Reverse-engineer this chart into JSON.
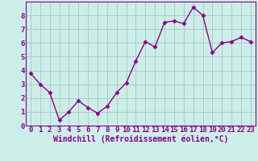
{
  "x": [
    0,
    1,
    2,
    3,
    4,
    5,
    6,
    7,
    8,
    9,
    10,
    11,
    12,
    13,
    14,
    15,
    16,
    17,
    18,
    19,
    20,
    21,
    22,
    23
  ],
  "y": [
    3.8,
    3.0,
    2.4,
    0.4,
    1.0,
    1.8,
    1.3,
    0.9,
    1.4,
    2.4,
    3.1,
    4.7,
    6.1,
    5.7,
    7.5,
    7.6,
    7.4,
    8.6,
    8.0,
    5.3,
    6.0,
    6.1,
    6.4,
    6.1
  ],
  "line_color": "#880088",
  "marker": "D",
  "marker_size": 2.5,
  "line_width": 1.0,
  "bg_color": "#cceee8",
  "grid_color": "#aacccc",
  "xlabel": "Windchill (Refroidissement éolien,°C)",
  "xlabel_fontsize": 7,
  "tick_fontsize": 6.5,
  "xlim": [
    -0.5,
    23.5
  ],
  "ylim": [
    0,
    9
  ],
  "yticks": [
    0,
    1,
    2,
    3,
    4,
    5,
    6,
    7,
    8
  ],
  "xticks": [
    0,
    1,
    2,
    3,
    4,
    5,
    6,
    7,
    8,
    9,
    10,
    11,
    12,
    13,
    14,
    15,
    16,
    17,
    18,
    19,
    20,
    21,
    22,
    23
  ]
}
